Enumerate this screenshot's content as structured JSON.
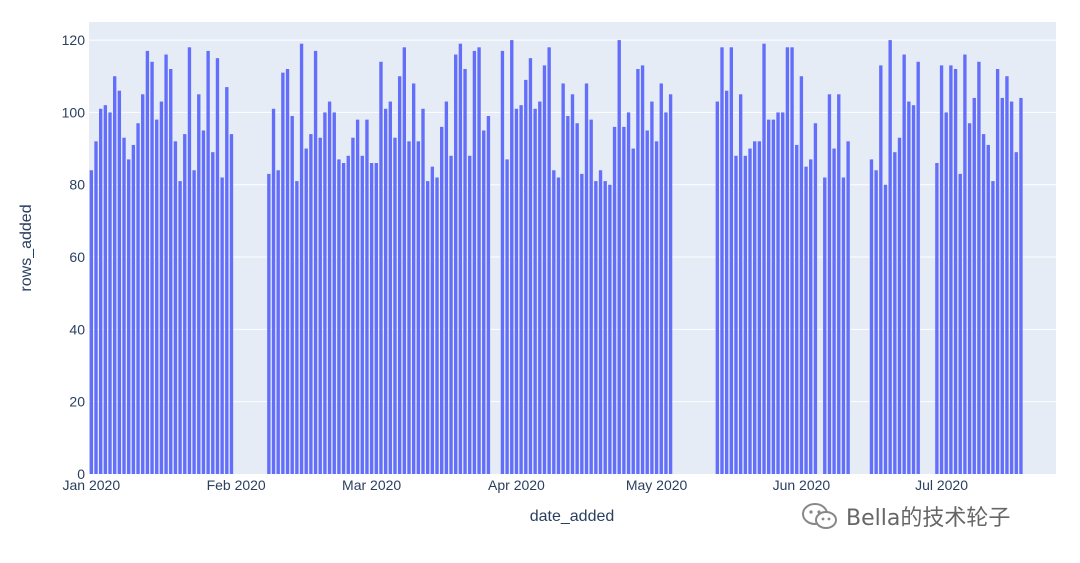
{
  "chart_data": {
    "type": "bar",
    "title": "",
    "xlabel": "date_added",
    "ylabel": "rows_added",
    "ylim": [
      0,
      125
    ],
    "xlim": [
      "2019-12-31T12:00",
      "2020-07-25T12:00"
    ],
    "y_ticks": [
      "0",
      "20",
      "40",
      "60",
      "80",
      "100",
      "120"
    ],
    "x_ticks": [
      {
        "label": "Jan 2020",
        "date": "2020-01-01"
      },
      {
        "label": "Feb 2020",
        "date": "2020-02-01"
      },
      {
        "label": "Mar 2020",
        "date": "2020-03-01"
      },
      {
        "label": "Apr 2020",
        "date": "2020-04-01"
      },
      {
        "label": "May 2020",
        "date": "2020-05-01"
      },
      {
        "label": "Jun 2020",
        "date": "2020-06-01"
      },
      {
        "label": "Jul 2020",
        "date": "2020-07-01"
      }
    ],
    "grid": true,
    "colors": {
      "bar": "#636efa",
      "plot_bg": "#e5ecf6",
      "grid": "#ffffff",
      "text": "#2a3f5f"
    },
    "segments": [
      {
        "start": "2020-01-01",
        "values": [
          84,
          92,
          101,
          102,
          100,
          110,
          106,
          93,
          87,
          91,
          97,
          105,
          117,
          114,
          98,
          103,
          116,
          112,
          92,
          81,
          94,
          118,
          84,
          105,
          95,
          117,
          89,
          115,
          82,
          107,
          94
        ]
      },
      {
        "start": "2020-02-08",
        "values": [
          83,
          101,
          84,
          111,
          112,
          99,
          81,
          119,
          90,
          94,
          117,
          93,
          100,
          103,
          100,
          87,
          86,
          88,
          93,
          98,
          88,
          98,
          86,
          86,
          114,
          101,
          103,
          93,
          110,
          118,
          92,
          108,
          92,
          101,
          81,
          85,
          82,
          96,
          103,
          88,
          116,
          119,
          112,
          88,
          117,
          118,
          95,
          99
        ]
      },
      {
        "start": "2020-03-29",
        "values": [
          117,
          87,
          120,
          101,
          102,
          109,
          115,
          101,
          103,
          113,
          118,
          84,
          82,
          108,
          99,
          105,
          97,
          83,
          108,
          98,
          81,
          84,
          81,
          80,
          96,
          120,
          96,
          100,
          90,
          112,
          113,
          95,
          103,
          92,
          108,
          100,
          105
        ]
      },
      {
        "start": "2020-05-14",
        "values": [
          103,
          118,
          106,
          118,
          88,
          105,
          88,
          90,
          92,
          92,
          119,
          98,
          98,
          100,
          100,
          118,
          118,
          91,
          110,
          85,
          87,
          97
        ]
      },
      {
        "start": "2020-06-06",
        "values": [
          82,
          105,
          90,
          105,
          82,
          92
        ]
      },
      {
        "start": "2020-06-16",
        "values": [
          87,
          84,
          113,
          80,
          120,
          89,
          93,
          116,
          103,
          102,
          114
        ]
      },
      {
        "start": "2020-06-30",
        "values": [
          86,
          113,
          100,
          113,
          112,
          83,
          116,
          97,
          104,
          114,
          94,
          91,
          81,
          112,
          104,
          110,
          103,
          89,
          104
        ]
      }
    ]
  },
  "watermark": {
    "text": "Bella的技术轮子"
  }
}
